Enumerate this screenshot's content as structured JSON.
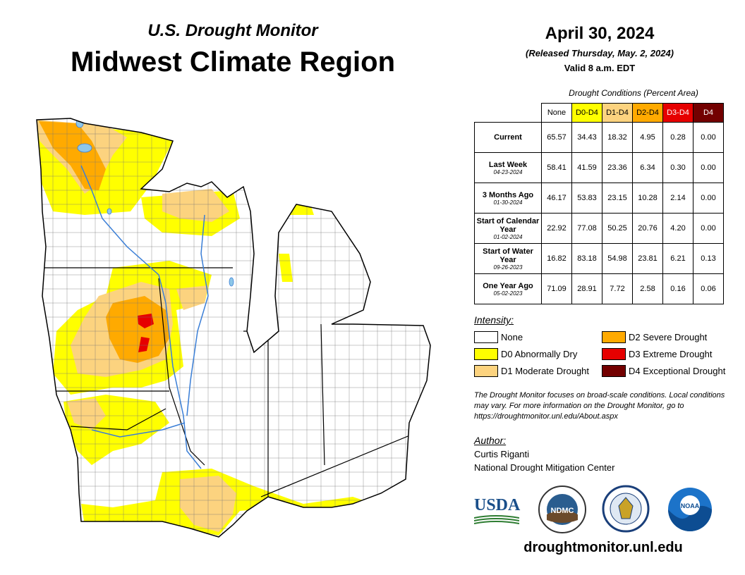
{
  "header": {
    "subtitle": "U.S. Drought Monitor",
    "title": "Midwest Climate Region",
    "date": "April 30, 2024",
    "released": "(Released Thursday, May. 2, 2024)",
    "valid": "Valid 8 a.m. EDT"
  },
  "conditions": {
    "caption": "Drought Conditions (Percent Area)",
    "columns": [
      {
        "label": "None",
        "color": "#ffffff",
        "text_color": "#000000"
      },
      {
        "label": "D0-D4",
        "color": "#ffff00",
        "text_color": "#000000"
      },
      {
        "label": "D1-D4",
        "color": "#fcd37f",
        "text_color": "#000000"
      },
      {
        "label": "D2-D4",
        "color": "#ffaa00",
        "text_color": "#000000"
      },
      {
        "label": "D3-D4",
        "color": "#e60000",
        "text_color": "#ffffff"
      },
      {
        "label": "D4",
        "color": "#730000",
        "text_color": "#ffffff"
      }
    ],
    "rows": [
      {
        "label": "Current",
        "date": "",
        "values": [
          "65.57",
          "34.43",
          "18.32",
          "4.95",
          "0.28",
          "0.00"
        ]
      },
      {
        "label": "Last Week",
        "date": "04-23-2024",
        "values": [
          "58.41",
          "41.59",
          "23.36",
          "6.34",
          "0.30",
          "0.00"
        ]
      },
      {
        "label": "3 Months Ago",
        "date": "01-30-2024",
        "values": [
          "46.17",
          "53.83",
          "23.15",
          "10.28",
          "2.14",
          "0.00"
        ]
      },
      {
        "label": "Start of Calendar Year",
        "date": "01-02-2024",
        "values": [
          "22.92",
          "77.08",
          "50.25",
          "20.76",
          "4.20",
          "0.00"
        ]
      },
      {
        "label": "Start of Water Year",
        "date": "09-26-2023",
        "values": [
          "16.82",
          "83.18",
          "54.98",
          "23.81",
          "6.21",
          "0.13"
        ]
      },
      {
        "label": "One Year Ago",
        "date": "05-02-2023",
        "values": [
          "71.09",
          "28.91",
          "7.72",
          "2.58",
          "0.16",
          "0.06"
        ]
      }
    ]
  },
  "legend": {
    "heading": "Intensity:",
    "items": [
      {
        "label": "None",
        "color": "#ffffff"
      },
      {
        "label": "D0 Abnormally Dry",
        "color": "#ffff00"
      },
      {
        "label": "D1 Moderate Drought",
        "color": "#fcd37f"
      },
      {
        "label": "D2 Severe Drought",
        "color": "#ffaa00"
      },
      {
        "label": "D3 Extreme Drought",
        "color": "#e60000"
      },
      {
        "label": "D4 Exceptional Drought",
        "color": "#730000"
      }
    ]
  },
  "note": "The Drought Monitor focuses on broad-scale conditions. Local conditions may vary. For more information on the Drought Monitor, go to https://droughtmonitor.unl.edu/About.aspx",
  "author": {
    "heading": "Author:",
    "name": "Curtis Riganti",
    "org": "National Drought Mitigation Center"
  },
  "logos": {
    "usda": "USDA",
    "ndmc": "NDMC",
    "noaa": "NOAA"
  },
  "icons": [
    "usda-logo",
    "ndmc-logo",
    "commerce-seal-logo",
    "noaa-logo"
  ],
  "footer": {
    "url": "droughtmonitor.unl.edu"
  }
}
